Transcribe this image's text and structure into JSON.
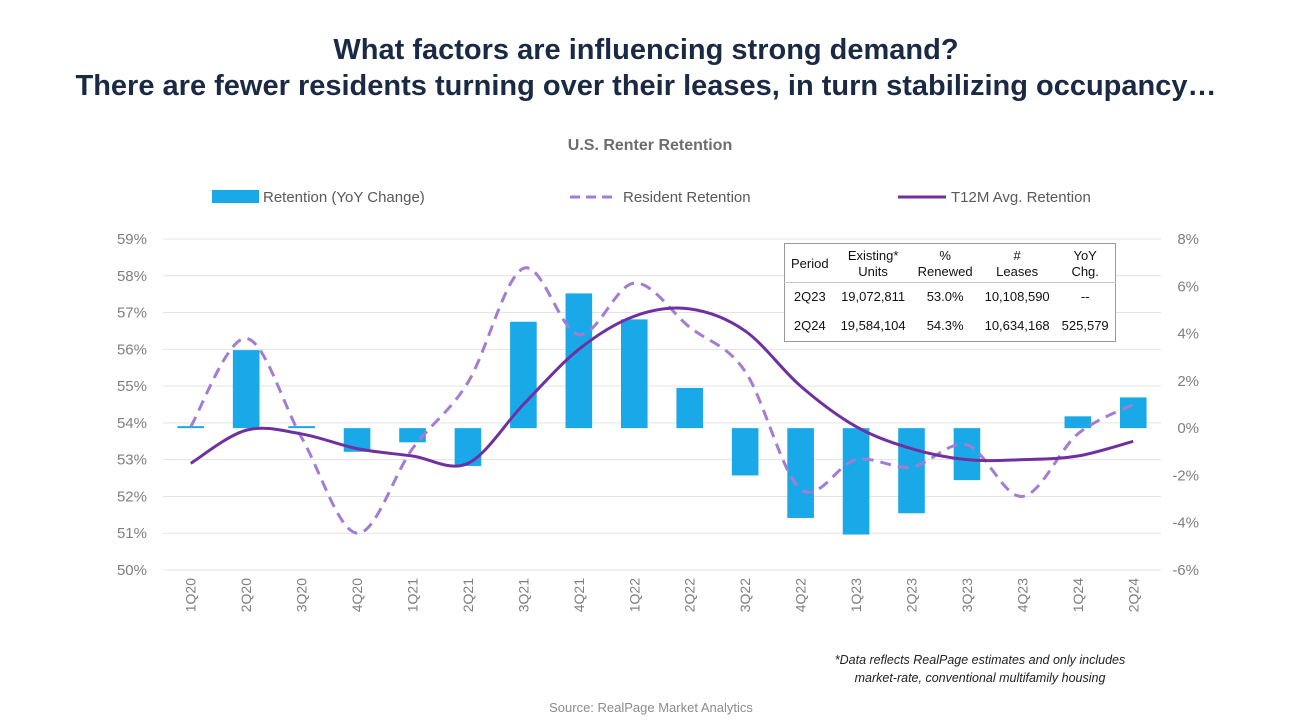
{
  "header": {
    "title_line1": "What factors are influencing strong demand?",
    "title_line2": "There are fewer residents turning over their leases, in turn stabilizing occupancy…"
  },
  "table": {
    "headers": [
      "Period",
      "Existing*\nUnits",
      "%\nRenewed",
      "#\nLeases",
      "YoY\nChg."
    ],
    "rows": [
      [
        "2Q23",
        "19,072,811",
        "53.0%",
        "10,108,590",
        "--"
      ],
      [
        "2Q24",
        "19,584,104",
        "54.3%",
        "10,634,168",
        "525,579"
      ]
    ]
  },
  "footnote": {
    "line1": "*Data reflects RealPage estimates and only includes",
    "line2": "market-rate, conventional multifamily housing"
  },
  "source": "Source: RealPage Market Analytics",
  "colors": {
    "bar": "#1aa9e8",
    "dashed": "#a27dd3",
    "solid": "#7030a0",
    "grid": "#e3e3e3",
    "axis_text": "#7f7f7f"
  },
  "chart_data": {
    "type": "bar",
    "title": "U.S. Renter Retention",
    "categories": [
      "1Q20",
      "2Q20",
      "3Q20",
      "4Q20",
      "1Q21",
      "2Q21",
      "3Q21",
      "4Q21",
      "1Q22",
      "2Q22",
      "3Q22",
      "4Q22",
      "1Q23",
      "2Q23",
      "3Q23",
      "4Q23",
      "1Q24",
      "2Q24"
    ],
    "series": [
      {
        "name": "Retention (YoY Change)",
        "type": "bar",
        "axis": "right",
        "values": [
          0.05,
          3.3,
          0.05,
          -1.0,
          -0.6,
          -1.6,
          4.5,
          5.7,
          4.6,
          1.7,
          -2.0,
          -3.8,
          -4.5,
          -3.6,
          -2.2,
          0,
          0.5,
          1.3
        ]
      },
      {
        "name": "Resident Retention",
        "type": "line-dashed",
        "axis": "left",
        "values": [
          53.9,
          56.3,
          53.6,
          51.0,
          53.3,
          55.1,
          58.2,
          56.4,
          57.8,
          56.6,
          55.4,
          52.2,
          53.0,
          52.8,
          53.4,
          52.0,
          53.7,
          54.5
        ]
      },
      {
        "name": "T12M Avg. Retention",
        "type": "line",
        "axis": "left",
        "values": [
          52.9,
          53.8,
          53.7,
          53.3,
          53.1,
          52.9,
          54.5,
          56.0,
          56.9,
          57.1,
          56.5,
          55.0,
          53.9,
          53.3,
          53.0,
          53.0,
          53.1,
          53.5
        ]
      }
    ],
    "y_left": {
      "ticks": [
        "59%",
        "58%",
        "57%",
        "56%",
        "55%",
        "54%",
        "53%",
        "52%",
        "51%",
        "50%"
      ],
      "range": [
        50,
        59
      ]
    },
    "y_right": {
      "ticks": [
        "8%",
        "6%",
        "4%",
        "2%",
        "0%",
        "-2%",
        "-4%",
        "-6%"
      ],
      "range": [
        -6,
        8
      ]
    },
    "grid": true,
    "legend_position": "top"
  }
}
